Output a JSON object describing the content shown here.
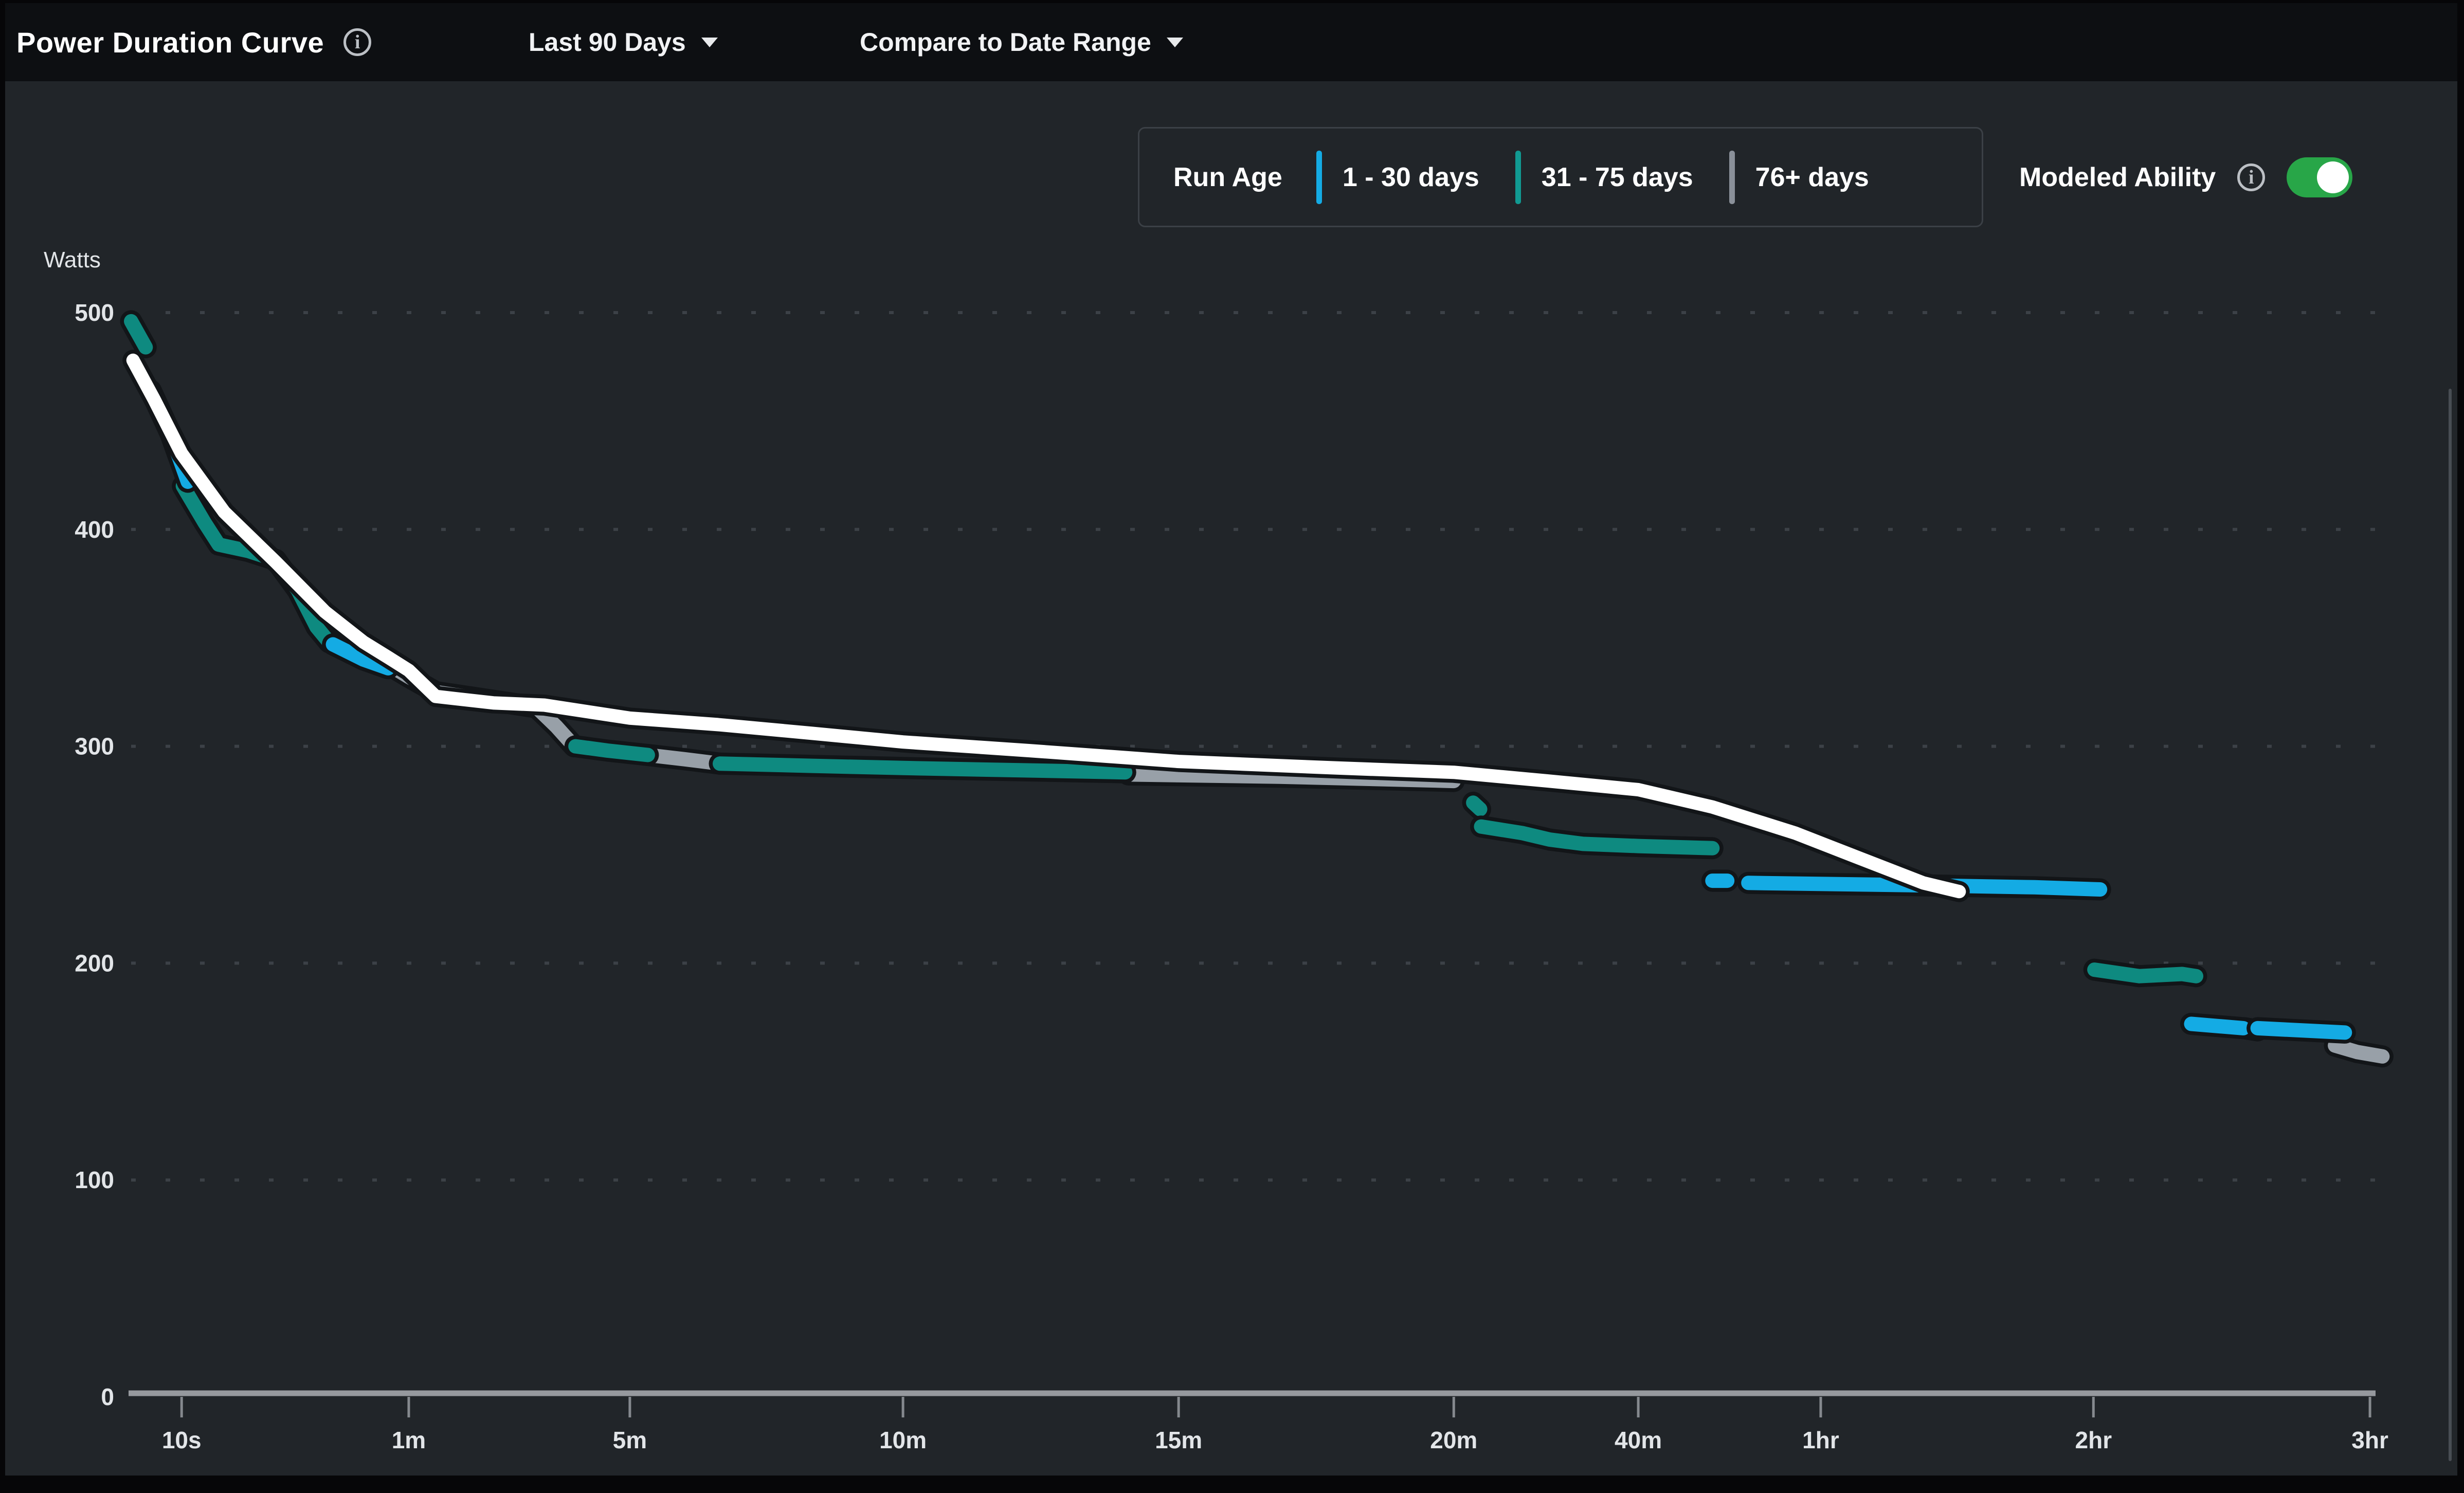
{
  "header": {
    "title": "Power Duration Curve",
    "info_glyph": "i",
    "date_range_label": "Last 90 Days",
    "compare_label": "Compare to Date Range"
  },
  "legend": {
    "run_age_label": "Run Age",
    "items": [
      {
        "label": "1 - 30 days",
        "color": "#14abe4"
      },
      {
        "label": "31 - 75 days",
        "color": "#119a92"
      },
      {
        "label": "76+ days",
        "color": "#8a9099"
      }
    ],
    "modeled_ability_label": "Modeled Ability",
    "toggle_on": true,
    "toggle_color": "#28a648"
  },
  "chart_data": {
    "type": "line",
    "title": "Power Duration Curve",
    "xlabel": "",
    "ylabel": "Watts",
    "ylim": [
      0,
      500
    ],
    "y_ticks": [
      0,
      100,
      200,
      300,
      400,
      500
    ],
    "x_ticks": [
      {
        "label": "10s",
        "seconds": 10
      },
      {
        "label": "1m",
        "seconds": 60
      },
      {
        "label": "5m",
        "seconds": 300
      },
      {
        "label": "10m",
        "seconds": 600
      },
      {
        "label": "15m",
        "seconds": 900
      },
      {
        "label": "20m",
        "seconds": 1200
      },
      {
        "label": "40m",
        "seconds": 2400
      },
      {
        "label": "1hr",
        "seconds": 3600
      },
      {
        "label": "2hr",
        "seconds": 7200
      },
      {
        "label": "3hr",
        "seconds": 10800
      }
    ],
    "x_axis_anchors": [
      [
        6.8,
        0.0
      ],
      [
        10,
        0.0225
      ],
      [
        60,
        0.1237
      ],
      [
        300,
        0.2222
      ],
      [
        600,
        0.3439
      ],
      [
        900,
        0.4667
      ],
      [
        1200,
        0.5893
      ],
      [
        2400,
        0.6715
      ],
      [
        3600,
        0.7528
      ],
      [
        7200,
        0.8743
      ],
      [
        10800,
        0.9975
      ]
    ],
    "grid": "dotted-horizontal",
    "legend_position": "top-right",
    "point_units": [
      "seconds",
      "watts"
    ],
    "series": [
      {
        "id": "run-76",
        "name": "76+ days",
        "color": "#98a0a8",
        "stroke_width": 28,
        "segments": [
          [
            [
              52,
              337
            ],
            [
              60,
              332
            ],
            [
              73,
              325
            ],
            [
              111,
              321
            ],
            [
              152,
              318
            ],
            [
              176,
              309
            ],
            [
              200,
              300
            ]
          ],
          [
            [
              314,
              296
            ],
            [
              345,
              294
            ],
            [
              377,
              292
            ]
          ],
          [
            [
              836,
              287
            ],
            [
              1000,
              286
            ],
            [
              1200,
              284
            ]
          ],
          [
            [
              10260,
              162
            ],
            [
              10600,
              159
            ],
            [
              11000,
              157
            ]
          ]
        ]
      },
      {
        "id": "run-31-75",
        "name": "31 - 75 days",
        "color": "#0e8a80",
        "stroke_width": 28,
        "segments": [
          [
            [
              6.8,
              496
            ],
            [
              7.6,
              484
            ]
          ],
          [
            [
              10.1,
              420
            ],
            [
              12,
              403
            ],
            [
              13.4,
              393
            ],
            [
              17,
              390
            ],
            [
              21,
              386
            ],
            [
              25,
              372
            ],
            [
              29,
              355
            ],
            [
              32,
              348
            ]
          ],
          [
            [
              202,
              300
            ],
            [
              255,
              298
            ],
            [
              314,
              296
            ]
          ],
          [
            [
              377,
              292
            ],
            [
              476,
              291
            ],
            [
              600,
              290
            ],
            [
              832,
              288
            ]
          ],
          [
            [
              1291,
              274
            ],
            [
              1325,
              271
            ]
          ],
          [
            [
              1330,
              263
            ],
            [
              1550,
              260
            ],
            [
              1720,
              257
            ],
            [
              1950,
              255
            ],
            [
              2400,
              254
            ],
            [
              2830,
              253
            ]
          ],
          [
            [
              7210,
              197
            ],
            [
              7700,
              194
            ],
            [
              8200,
              195
            ],
            [
              8370,
              194
            ]
          ],
          [
            [
              8980,
              170
            ],
            [
              9160,
              169
            ]
          ]
        ]
      },
      {
        "id": "run-1-30",
        "name": "1 - 30 days",
        "color": "#14abe4",
        "stroke_width": 28,
        "segments": [
          [
            [
              7.9,
              464
            ],
            [
              9.2,
              444
            ],
            [
              10.5,
              422
            ]
          ],
          [
            [
              33,
              347
            ],
            [
              42,
              340
            ],
            [
              51,
              336
            ]
          ],
          [
            [
              2830,
              238
            ],
            [
              2925,
              238
            ]
          ],
          [
            [
              3065,
              237
            ],
            [
              4500,
              236
            ],
            [
              6200,
              235
            ],
            [
              7270,
              234
            ]
          ],
          [
            [
              8310,
              172
            ],
            [
              8970,
              170
            ]
          ],
          [
            [
              9160,
              170
            ],
            [
              10410,
              168
            ]
          ]
        ]
      },
      {
        "id": "modeled",
        "name": "Modeled Ability",
        "color": "#ffffff",
        "stroke_width": 26,
        "segments": [
          [
            [
              6.9,
              478
            ],
            [
              8.1,
              460
            ],
            [
              10,
              435
            ],
            [
              14,
              408
            ],
            [
              21,
              385
            ],
            [
              31,
              362
            ],
            [
              42,
              348
            ],
            [
              51,
              341
            ],
            [
              60,
              335
            ],
            [
              73,
              323
            ],
            [
              111,
              320
            ],
            [
              161,
              319
            ],
            [
              300,
              313
            ],
            [
              375,
              310
            ],
            [
              476,
              306
            ],
            [
              600,
              302
            ],
            [
              722,
              298
            ],
            [
              900,
              293
            ],
            [
              1062,
              290
            ],
            [
              1200,
              288
            ],
            [
              1709,
              284
            ],
            [
              2400,
              280
            ],
            [
              2830,
              272
            ],
            [
              3400,
              260
            ],
            [
              3940,
              249
            ],
            [
              4670,
              237
            ],
            [
              5119,
              233
            ]
          ]
        ]
      }
    ],
    "styles": {
      "background": "#212529",
      "grid_color": "#3c4147",
      "axis_color": "#96999e",
      "tick_color": "#85898e",
      "label_color": "#e2e5e8",
      "halo_color": "#121518"
    }
  }
}
